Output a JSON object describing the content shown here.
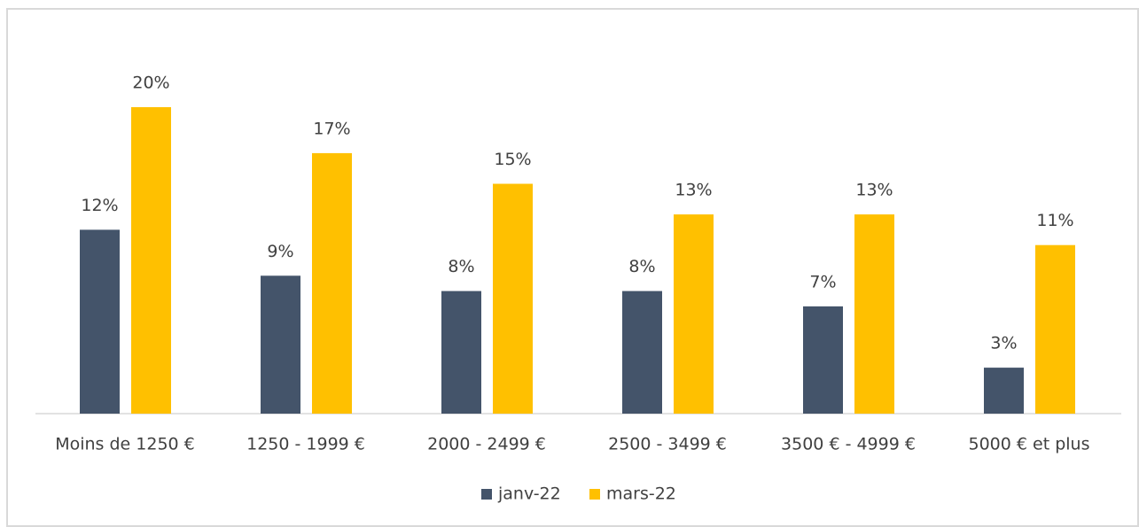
{
  "chart_data": {
    "type": "bar",
    "categories": [
      "Moins de 1250 €",
      "1250 - 1999 €",
      "2000 - 2499 €",
      "2500 - 3499 €",
      "3500 € - 4999 €",
      "5000 € et plus"
    ],
    "series": [
      {
        "name": "janv-22",
        "color": "#44546a",
        "values": [
          12,
          9,
          8,
          8,
          7,
          3
        ],
        "value_labels": [
          "12%",
          "9%",
          "8%",
          "8%",
          "7%",
          "3%"
        ]
      },
      {
        "name": "mars-22",
        "color": "#ffc000",
        "values": [
          20,
          17,
          15,
          13,
          13,
          11
        ],
        "value_labels": [
          "20%",
          "17%",
          "15%",
          "13%",
          "13%",
          "11%"
        ]
      }
    ]
  }
}
